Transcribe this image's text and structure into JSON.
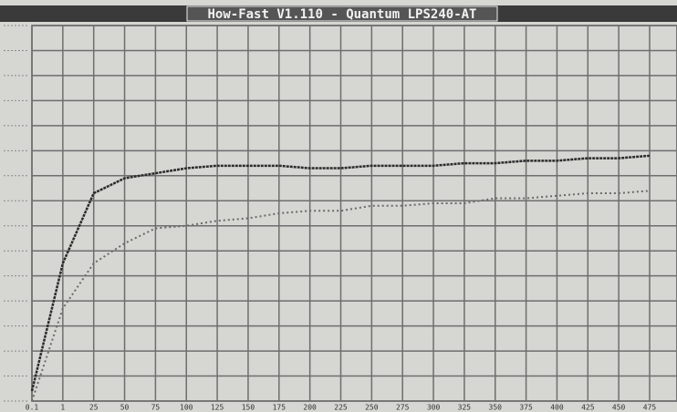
{
  "chart_data": {
    "type": "line",
    "title": "How-Fast V1.110 - Quantum LPS240-AT",
    "categories": [
      "0.1",
      "1",
      "25",
      "50",
      "75",
      "100",
      "125",
      "150",
      "175",
      "200",
      "225",
      "250",
      "275",
      "300",
      "325",
      "350",
      "375",
      "400",
      "425",
      "450",
      "475"
    ],
    "series": [
      {
        "color": "#2b2b2b",
        "values": [
          0.4,
          5.5,
          8.3,
          8.9,
          9.1,
          9.3,
          9.4,
          9.4,
          9.4,
          9.3,
          9.3,
          9.4,
          9.4,
          9.4,
          9.5,
          9.5,
          9.6,
          9.6,
          9.7,
          9.7,
          9.8
        ]
      },
      {
        "color": "#6a6a6a",
        "values": [
          0,
          3.7,
          5.5,
          6.3,
          6.9,
          7.0,
          7.2,
          7.3,
          7.5,
          7.6,
          7.6,
          7.8,
          7.8,
          7.9,
          7.9,
          8.1,
          8.1,
          8.2,
          8.3,
          8.3,
          8.4
        ]
      }
    ],
    "ylim": [
      0,
      15
    ],
    "yticks": [
      0,
      1,
      2,
      3,
      4,
      5,
      6,
      7,
      8,
      9,
      10,
      11,
      12,
      13,
      14,
      15
    ],
    "grid": true
  }
}
